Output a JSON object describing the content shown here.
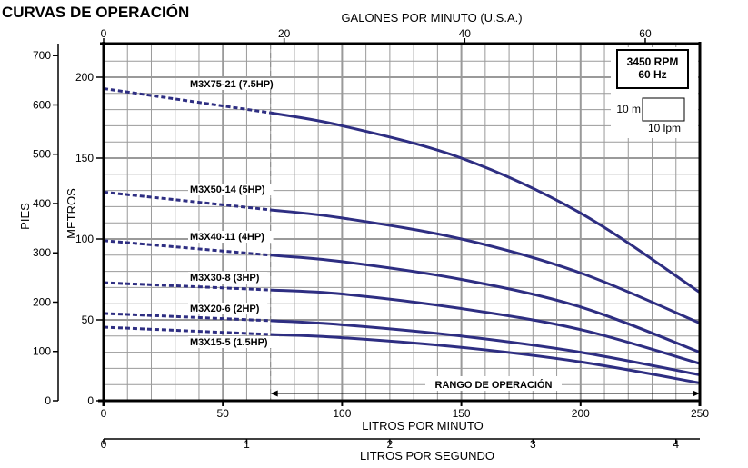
{
  "chart_data": {
    "type": "line",
    "title": "CURVAS DE OPERACIÓN",
    "xlabel": "LITROS POR MINUTO",
    "xlabel_secondary": "LITROS POR SEGUNDO",
    "xlabel_top": "GALONES POR MINUTO (U.S.A.)",
    "ylabel": "METROS",
    "ylabel_secondary": "PIES",
    "xlim": [
      0,
      250
    ],
    "ylim": [
      0,
      220
    ],
    "grid": true,
    "x_ticks": [
      "0",
      "50",
      "100",
      "150",
      "200",
      "250"
    ],
    "x_tick_values": [
      0,
      50,
      100,
      150,
      200,
      250
    ],
    "x_top_ticks": [
      "0",
      "20",
      "40",
      "60"
    ],
    "x_top_tick_values": [
      0,
      20,
      40,
      60
    ],
    "x_lps_ticks": [
      "0",
      "1",
      "2",
      "3",
      "4"
    ],
    "x_lps_tick_values": [
      0,
      1,
      2,
      3,
      4
    ],
    "y_ticks": [
      "0",
      "50",
      "100",
      "150",
      "200"
    ],
    "y_tick_values": [
      0,
      50,
      100,
      150,
      200
    ],
    "y_feet_ticks": [
      "0",
      "100",
      "200",
      "300",
      "400",
      "500",
      "600",
      "700"
    ],
    "y_feet_tick_values": [
      0,
      100,
      200,
      300,
      400,
      500,
      600,
      700
    ],
    "operating_range_start": 70,
    "operating_range_end": 250,
    "operating_range_label": "RANGO DE OPERACIÓN",
    "info_box": {
      "line1": "3450 RPM",
      "line2": "60 Hz"
    },
    "scale_key": {
      "vertical": "10 m",
      "horizontal": "10 lpm"
    },
    "curve_color": "#2e2e82",
    "x": [
      0,
      70,
      100,
      150,
      200,
      250
    ],
    "series": [
      {
        "name": "M3X75-21 (7.5HP)",
        "values": [
          193,
          178,
          170,
          150,
          116,
          67
        ]
      },
      {
        "name": "M3X50-14 (5HP)",
        "values": [
          129,
          118,
          113,
          100,
          79,
          48
        ]
      },
      {
        "name": "M3X40-11 (4HP)",
        "values": [
          99,
          90,
          86,
          75,
          58,
          30
        ]
      },
      {
        "name": "M3X30-8 (3HP)",
        "values": [
          73,
          68.5,
          66,
          57,
          44,
          23
        ]
      },
      {
        "name": "M3X20-6 (2HP)",
        "values": [
          54,
          49.5,
          47,
          40,
          30,
          16
        ]
      },
      {
        "name": "M3X15-5 (1.5HP)",
        "values": [
          45.5,
          41,
          39,
          33,
          24,
          11
        ]
      }
    ]
  }
}
